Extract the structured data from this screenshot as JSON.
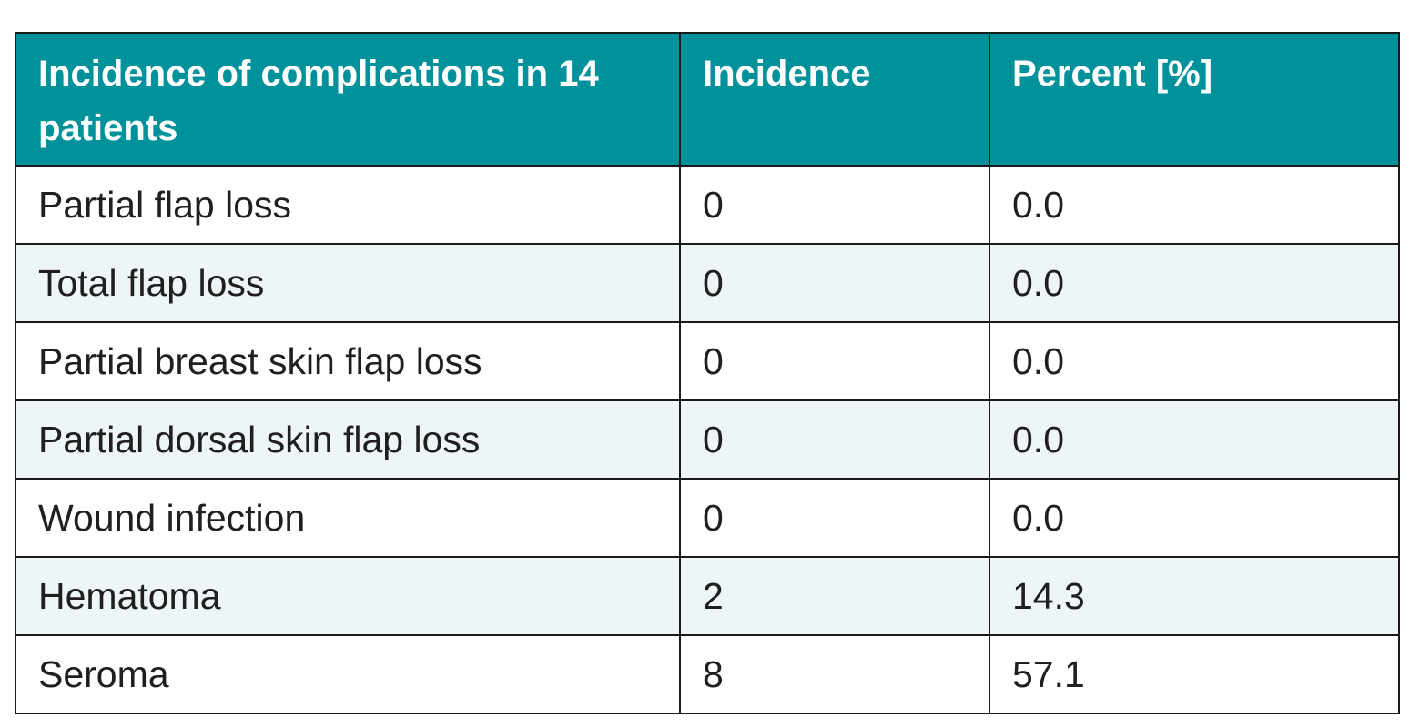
{
  "table": {
    "headers": [
      "Incidence of complications in 14 patients",
      "Incidence",
      "Percent [%]"
    ],
    "rows": [
      [
        "Partial flap loss",
        "0",
        "0.0"
      ],
      [
        "Total flap loss",
        "0",
        "0.0"
      ],
      [
        "Partial breast skin flap loss",
        "0",
        "0.0"
      ],
      [
        "Partial dorsal skin flap loss",
        "0",
        "0.0"
      ],
      [
        "Wound infection",
        "0",
        "0.0"
      ],
      [
        "Hematoma",
        "2",
        "14.3"
      ],
      [
        "Seroma",
        "8",
        "57.1"
      ]
    ]
  },
  "colors": {
    "header_background": "#00919b",
    "header_text": "#ffffff",
    "stripe_background": "#eef5f6",
    "border": "#1a1a1a"
  }
}
